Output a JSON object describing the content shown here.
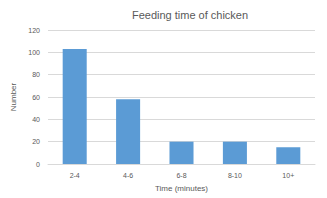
{
  "chart_data": {
    "type": "bar",
    "title": "Feeding time of chicken",
    "x_label": "Time (minutes)",
    "y_label": "Number",
    "categories": [
      "2-4",
      "4-6",
      "6-8",
      "8-10",
      "10+"
    ],
    "values": [
      103,
      58,
      20,
      20,
      15
    ],
    "color": "#5b9bd5",
    "ylim": [
      0,
      120
    ],
    "yticks": [
      0,
      20,
      40,
      60,
      80,
      100,
      120
    ],
    "grid": true
  }
}
